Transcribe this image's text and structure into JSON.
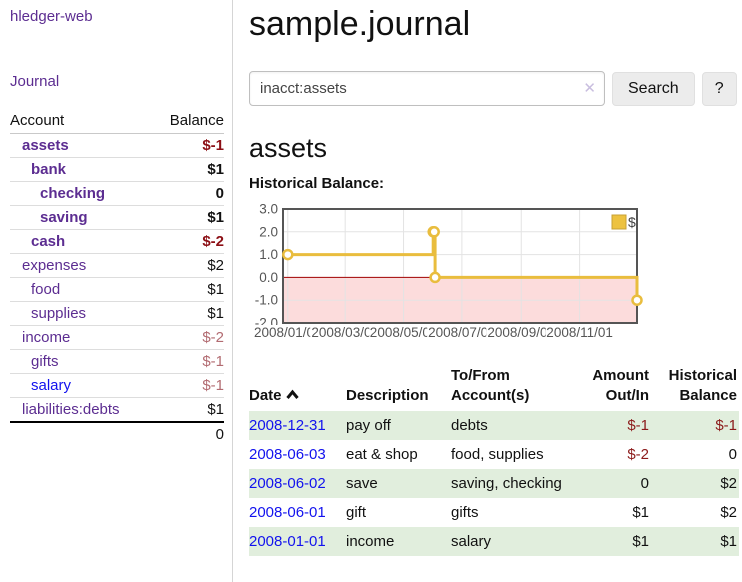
{
  "app": {
    "title": "hledger-web"
  },
  "colors": {
    "link_purple": "#5c2d91",
    "link_blue": "#1212ee",
    "negative_strong": "#8c0f15",
    "negative_muted": "#b26b71",
    "register_negative": "#8c1a1a",
    "register_row_green": "#e1eedd",
    "series_gold": "#e9bd3e",
    "legend_fill": "#edc240",
    "negative_region_pink": "#fcdcdc",
    "zero_line_red": "#a00000"
  },
  "sidebar": {
    "journal_link": "Journal",
    "table": {
      "account_header": "Account",
      "balance_header": "Balance",
      "accounts": [
        {
          "name": "assets",
          "indent": 0,
          "bold": true,
          "balance": "$-1",
          "balance_style": "neg-strong",
          "link_color": "purple"
        },
        {
          "name": "bank",
          "indent": 1,
          "bold": true,
          "balance": "$1",
          "balance_style": "pos",
          "link_color": "purple"
        },
        {
          "name": "checking",
          "indent": 2,
          "bold": true,
          "balance": "0",
          "balance_style": "pos",
          "link_color": "purple"
        },
        {
          "name": "saving",
          "indent": 2,
          "bold": true,
          "balance": "$1",
          "balance_style": "pos",
          "link_color": "purple"
        },
        {
          "name": "cash",
          "indent": 1,
          "bold": true,
          "balance": "$-2",
          "balance_style": "neg-strong",
          "link_color": "purple"
        },
        {
          "name": "expenses",
          "indent": 0,
          "bold": false,
          "balance": "$2",
          "balance_style": "pos",
          "link_color": "purple"
        },
        {
          "name": "food",
          "indent": 1,
          "bold": false,
          "balance": "$1",
          "balance_style": "pos",
          "link_color": "purple"
        },
        {
          "name": "supplies",
          "indent": 1,
          "bold": false,
          "balance": "$1",
          "balance_style": "pos",
          "link_color": "purple"
        },
        {
          "name": "income",
          "indent": 0,
          "bold": false,
          "balance": "$-2",
          "balance_style": "neg-muted",
          "link_color": "purple"
        },
        {
          "name": "gifts",
          "indent": 1,
          "bold": false,
          "balance": "$-1",
          "balance_style": "neg-muted",
          "link_color": "purple"
        },
        {
          "name": "salary",
          "indent": 1,
          "bold": false,
          "balance": "$-1",
          "balance_style": "neg-muted",
          "link_color": "blue"
        },
        {
          "name": "liabilities:debts",
          "indent": 0,
          "bold": false,
          "balance": "$1",
          "balance_style": "pos",
          "link_color": "purple"
        }
      ],
      "total": "0"
    }
  },
  "main": {
    "title": "sample.journal",
    "search": {
      "value": "inacct:assets",
      "clear_icon": "✕",
      "button": "Search",
      "help_button": "?"
    },
    "account_heading": "assets",
    "chart_label": "Historical Balance:",
    "register": {
      "columns": {
        "date": "Date",
        "description": "Description",
        "tofrom": "To/From Account(s)",
        "amount": "Amount Out/In",
        "balance": "Historical Balance"
      },
      "rows": [
        {
          "date": "2008-12-31",
          "description": "pay off",
          "accounts": "debts",
          "amount": "$-1",
          "amount_negative": true,
          "balance": "$-1",
          "balance_negative": true,
          "green": true
        },
        {
          "date": "2008-06-03",
          "description": "eat & shop",
          "accounts": "food, supplies",
          "amount": "$-2",
          "amount_negative": true,
          "balance": "0",
          "balance_negative": false,
          "green": false
        },
        {
          "date": "2008-06-02",
          "description": "save",
          "accounts": "saving, checking",
          "amount": "0",
          "amount_negative": false,
          "balance": "$2",
          "balance_negative": false,
          "green": true
        },
        {
          "date": "2008-06-01",
          "description": "gift",
          "accounts": "gifts",
          "amount": "$1",
          "amount_negative": false,
          "balance": "$2",
          "balance_negative": false,
          "green": false
        },
        {
          "date": "2008-01-01",
          "description": "income",
          "accounts": "salary",
          "amount": "$1",
          "amount_negative": false,
          "balance": "$1",
          "balance_negative": false,
          "green": true
        }
      ]
    }
  },
  "chart_data": {
    "type": "line",
    "step": true,
    "title": "Historical Balance",
    "series": [
      {
        "name": "$",
        "color": "#e9bd3e",
        "points": [
          [
            "2008-01-01",
            1
          ],
          [
            "2008-06-01",
            2
          ],
          [
            "2008-06-02",
            2
          ],
          [
            "2008-06-03",
            0
          ],
          [
            "2008-12-31",
            -1
          ]
        ]
      }
    ],
    "ylim": [
      -2,
      3
    ],
    "ytick_labels": [
      "3.0",
      "2.0",
      "1.0",
      "0.0",
      "-1.0",
      "-2.0"
    ],
    "ytick_values": [
      3,
      2,
      1,
      0,
      -1,
      -2
    ],
    "xtick_labels": [
      "2008/01/01",
      "2008/03/01",
      "2008/05/01",
      "2008/07/01",
      "2008/09/01",
      "2008/11/01"
    ],
    "grid": true,
    "legend": {
      "label": "$",
      "position": "top-right"
    },
    "negative_region_shaded": true
  }
}
